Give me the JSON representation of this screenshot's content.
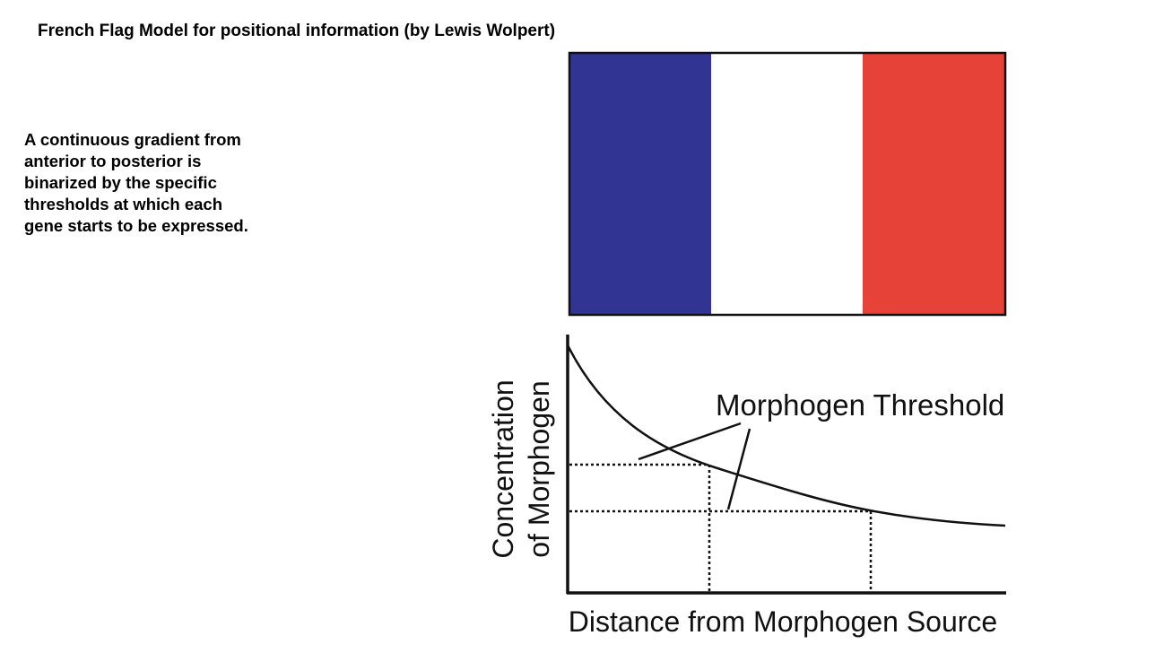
{
  "header": {
    "title": "French Flag Model for positional information (by Lewis Wolpert)"
  },
  "description": "A continuous gradient from anterior to posterior is binarized by the specific thresholds at which each gene starts to be expressed.",
  "figure": {
    "threshold_label": "Morphogen Threshold",
    "y_axis_label": [
      "Concentration",
      "of Morphogen"
    ],
    "x_axis_label": "Distance from Morphogen Source"
  }
}
